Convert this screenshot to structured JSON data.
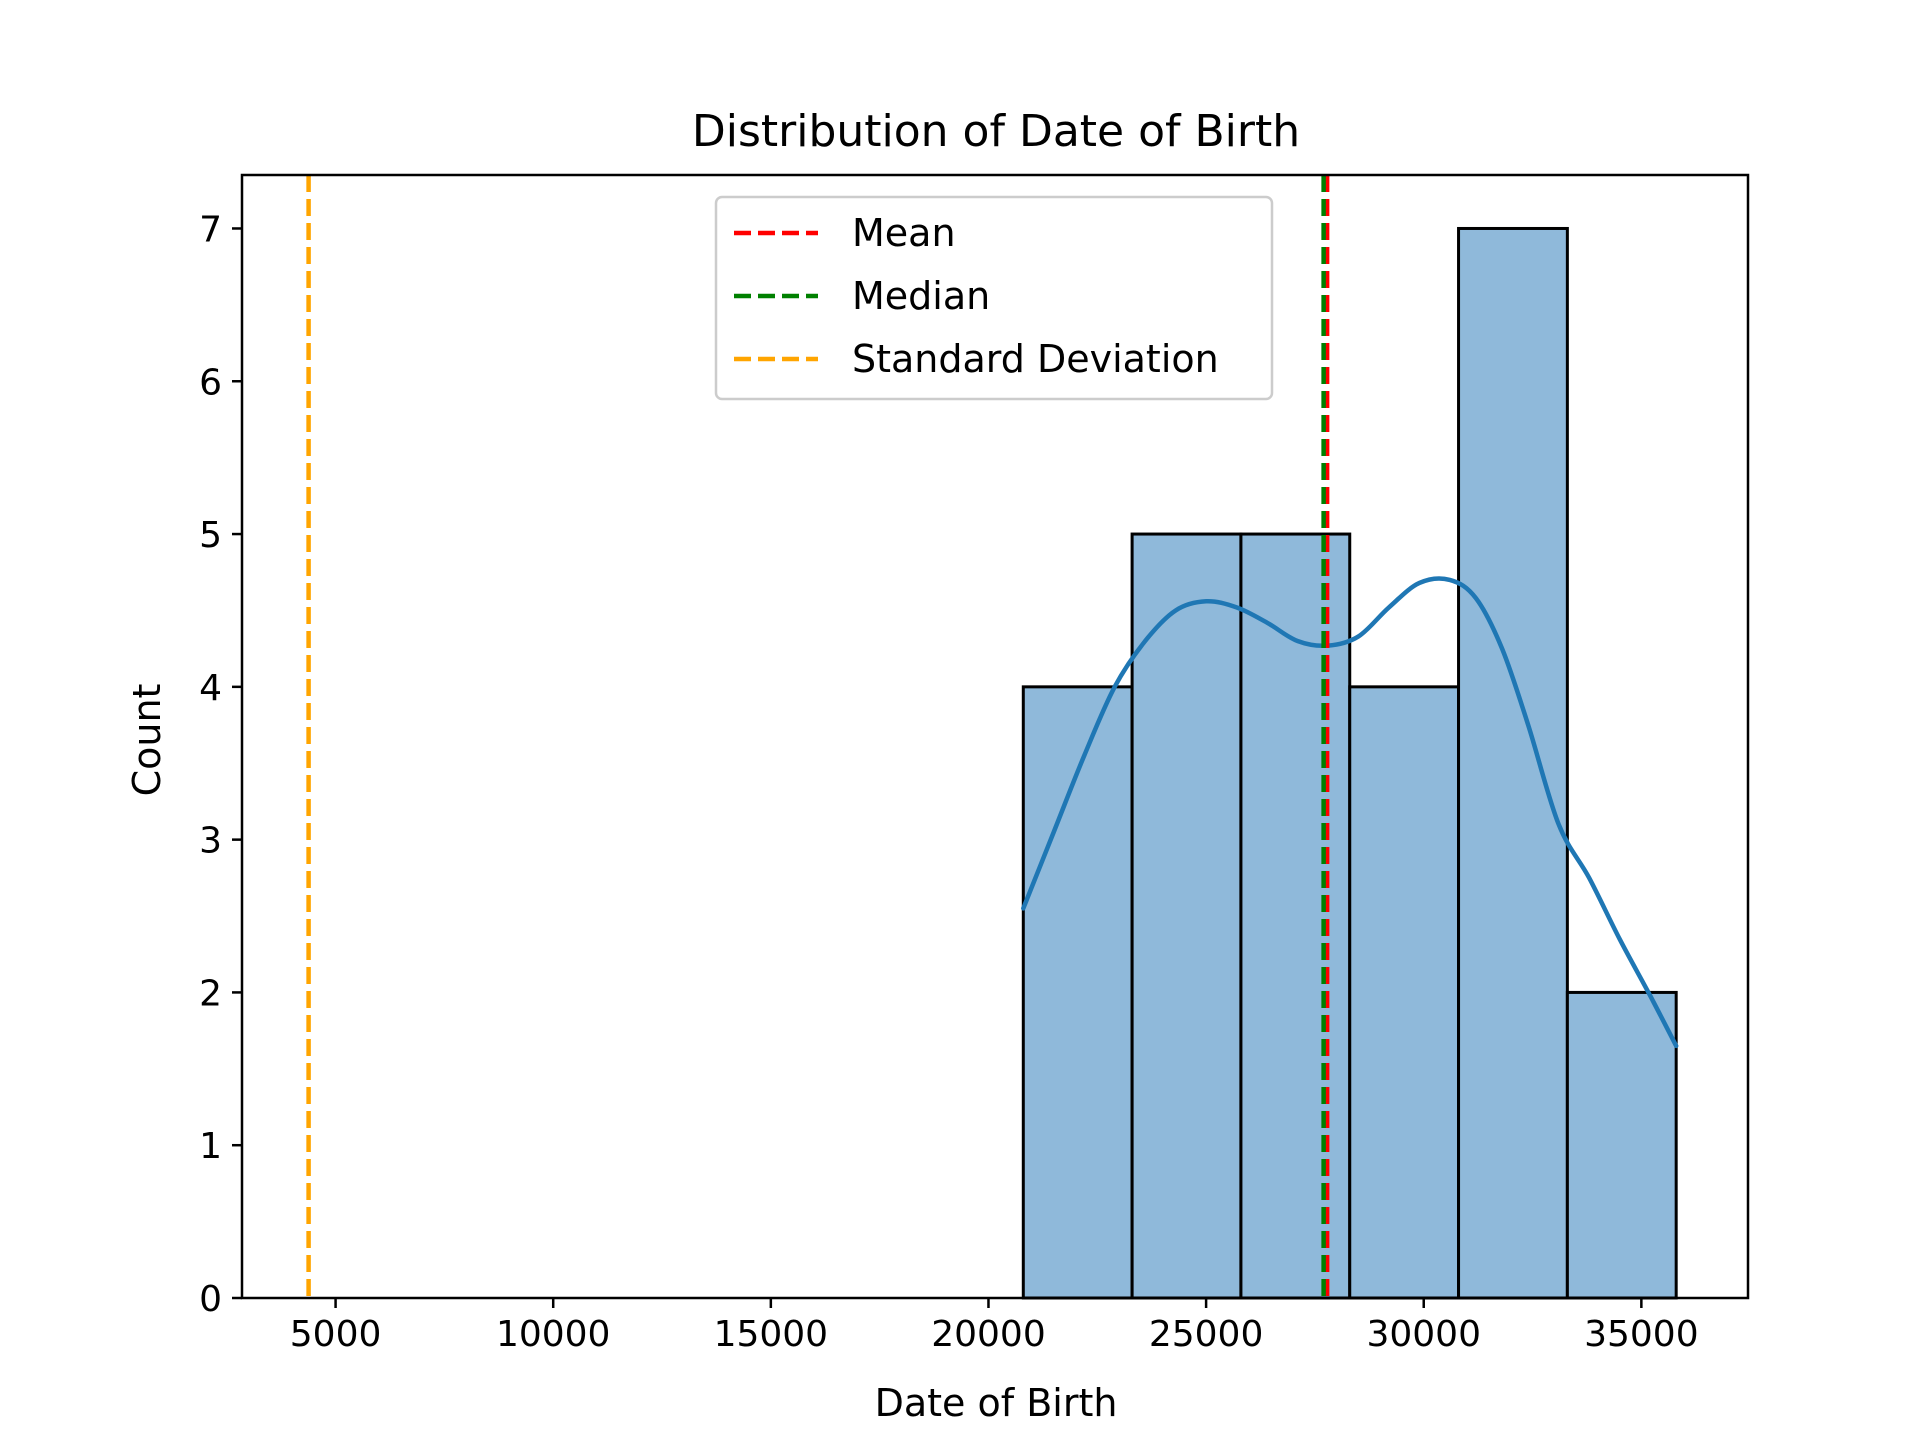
{
  "chart_data": {
    "type": "bar",
    "title": "Distribution of Date of Birth",
    "xlabel": "Date of Birth",
    "ylabel": "Count",
    "xlim": [
      2850,
      37450
    ],
    "ylim": [
      0,
      7.35
    ],
    "xticks": [
      5000,
      10000,
      15000,
      20000,
      25000,
      30000,
      35000
    ],
    "yticks": [
      0,
      1,
      2,
      3,
      4,
      5,
      6,
      7
    ],
    "grid": false,
    "legend_position": "top-center",
    "colors": {
      "bar_fill": "#8fb9da",
      "bar_edge": "#000000",
      "kde": "#1f77b4",
      "mean": "#ff0000",
      "median": "#008000",
      "std": "#ffa500"
    },
    "bins": [
      {
        "start": 20800,
        "end": 23300,
        "count": 4
      },
      {
        "start": 23300,
        "end": 25800,
        "count": 5
      },
      {
        "start": 25800,
        "end": 28300,
        "count": 5
      },
      {
        "start": 28300,
        "end": 30800,
        "count": 4
      },
      {
        "start": 30800,
        "end": 33300,
        "count": 7
      },
      {
        "start": 33300,
        "end": 35800,
        "count": 2
      }
    ],
    "kde": {
      "x": [
        20800,
        21500,
        22200,
        22900,
        23600,
        24300,
        25000,
        25700,
        26400,
        27100,
        27800,
        28500,
        29200,
        29900,
        30600,
        31200,
        31800,
        32400,
        33100,
        33800,
        34500,
        35200,
        35800
      ],
      "y": [
        2.55,
        3.05,
        3.55,
        4.0,
        4.3,
        4.5,
        4.56,
        4.52,
        4.42,
        4.3,
        4.27,
        4.33,
        4.52,
        4.68,
        4.7,
        4.58,
        4.25,
        3.75,
        3.1,
        2.75,
        2.35,
        1.98,
        1.65
      ]
    },
    "reference_lines": [
      {
        "name": "Mean",
        "x": 27780,
        "color": "#ff0000"
      },
      {
        "name": "Median",
        "x": 27700,
        "color": "#008000"
      },
      {
        "name": "Standard Deviation",
        "x": 4380,
        "color": "#ffa500"
      }
    ]
  }
}
